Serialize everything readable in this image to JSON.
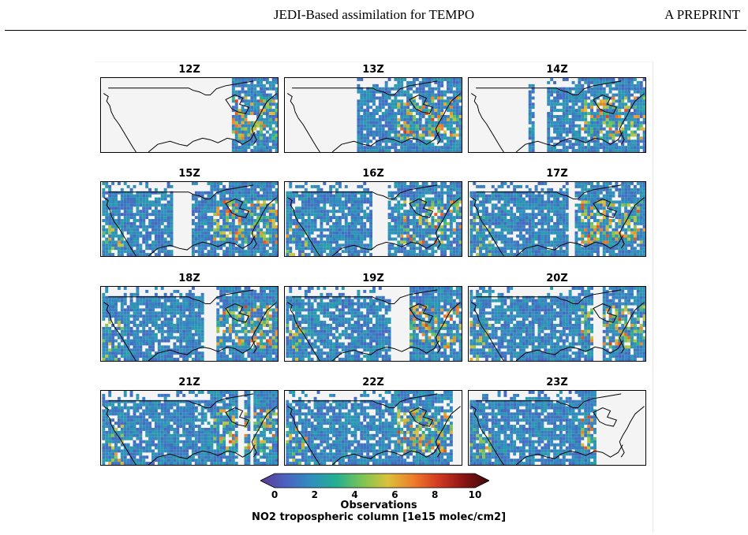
{
  "header": {
    "title": "JEDI-Based assimilation for TEMPO",
    "tag": "A PREPRINT"
  },
  "figure": {
    "panels": [
      {
        "label": "12Z",
        "swath": [
          0.74,
          1.0
        ],
        "gaps": []
      },
      {
        "label": "13Z",
        "swath": [
          0.4,
          1.0
        ],
        "gaps": []
      },
      {
        "label": "14Z",
        "swath": [
          0.33,
          1.0
        ],
        "gaps": [
          [
            0.36,
            0.43
          ]
        ]
      },
      {
        "label": "15Z",
        "swath": [
          0.0,
          1.0
        ],
        "gaps": [
          [
            0.4,
            0.5
          ]
        ]
      },
      {
        "label": "16Z",
        "swath": [
          0.0,
          1.0
        ],
        "gaps": [
          [
            0.48,
            0.57
          ]
        ]
      },
      {
        "label": "17Z",
        "swath": [
          0.0,
          1.0
        ],
        "gaps": [
          [
            0.56,
            0.6
          ]
        ]
      },
      {
        "label": "18Z",
        "swath": [
          0.0,
          1.0
        ],
        "gaps": [
          [
            0.58,
            0.65
          ]
        ]
      },
      {
        "label": "19Z",
        "swath": [
          0.0,
          1.0
        ],
        "gaps": [
          [
            0.6,
            0.7
          ]
        ]
      },
      {
        "label": "20Z",
        "swath": [
          0.0,
          1.0
        ],
        "gaps": [
          [
            0.7,
            0.76
          ]
        ]
      },
      {
        "label": "21Z",
        "swath": [
          0.0,
          1.0
        ],
        "gaps": [
          [
            0.77,
            0.81
          ],
          [
            0.84,
            0.86
          ]
        ]
      },
      {
        "label": "22Z",
        "swath": [
          0.0,
          0.95
        ],
        "gaps": []
      },
      {
        "label": "23Z",
        "swath": [
          0.0,
          0.72
        ],
        "gaps": []
      }
    ],
    "colorbar": {
      "min": 0,
      "max": 10,
      "ticks": [
        "0",
        "2",
        "4",
        "6",
        "8",
        "10"
      ],
      "label_line1": "Observations",
      "label_line2": "NO2 tropospheric column [1e15 molec/cm2]",
      "colormap": [
        "#5b3a8e",
        "#4a62c2",
        "#2f8fbf",
        "#22b090",
        "#7cc455",
        "#d9c23a",
        "#ef7d2a",
        "#d23a22",
        "#8b1414",
        "#3a0a0a"
      ]
    }
  }
}
